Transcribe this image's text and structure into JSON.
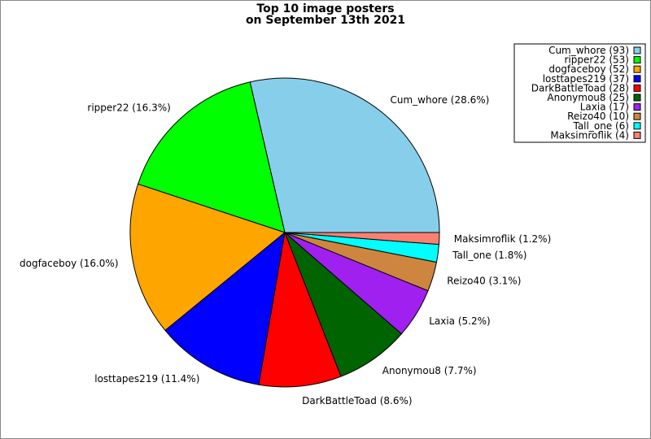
{
  "chart_data": {
    "type": "pie",
    "title_lines": [
      "Top 10 image posters",
      "on September 13th 2021"
    ],
    "legend_position": "top-right",
    "slices": [
      {
        "name": "Cum_whore",
        "count": 93,
        "percent": "28.6%",
        "color": "#87ceeb"
      },
      {
        "name": "ripper22",
        "count": 53,
        "percent": "16.3%",
        "color": "#00ff00"
      },
      {
        "name": "dogfaceboy",
        "count": 52,
        "percent": "16.0%",
        "color": "#ffa500"
      },
      {
        "name": "losttapes219",
        "count": 37,
        "percent": "11.4%",
        "color": "#0000ff"
      },
      {
        "name": "DarkBattleToad",
        "count": 28,
        "percent": "8.6%",
        "color": "#ff0000"
      },
      {
        "name": "Anonymou8",
        "count": 25,
        "percent": "7.7%",
        "color": "#006400"
      },
      {
        "name": "Laxia",
        "count": 17,
        "percent": "5.2%",
        "color": "#a020f0"
      },
      {
        "name": "Reizo40",
        "count": 10,
        "percent": "3.1%",
        "color": "#cd853f"
      },
      {
        "name": "Tall_one",
        "count": 6,
        "percent": "1.8%",
        "color": "#00ffff"
      },
      {
        "name": "Maksimroflik",
        "count": 4,
        "percent": "1.2%",
        "color": "#fa8072"
      }
    ]
  }
}
